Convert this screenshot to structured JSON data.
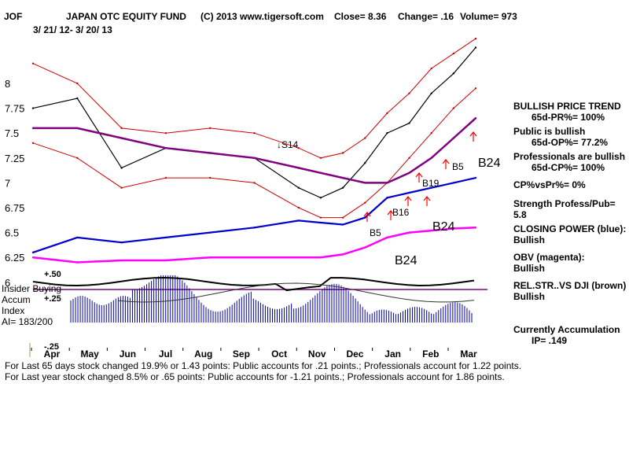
{
  "header": {
    "ticker": "JOF",
    "fund_name": "JAPAN OTC EQUITY FUND",
    "copyright": "(C) 2013 www.tigersoft.com",
    "close": "Close=  8.36",
    "change": "Change= .16",
    "volume": "Volume= 973",
    "date_range": "3/ 21/ 12-  3/ 20/ 13"
  },
  "chart_data": {
    "type": "line",
    "y_axis": {
      "ticks": [
        "8",
        "7.75",
        "7.5",
        "7.25",
        "7",
        "6.75",
        "6.5",
        "6.25",
        "6"
      ],
      "tick_values": [
        8,
        7.75,
        7.5,
        7.25,
        7,
        6.75,
        6.5,
        6.25,
        6
      ]
    },
    "x_axis": {
      "ticks": [
        "Apr",
        "May",
        "Jun",
        "Jul",
        "Aug",
        "Sep",
        "Oct",
        "Nov",
        "Dec",
        "Jan",
        "Feb",
        "Mar"
      ]
    },
    "x": [
      0,
      0.1,
      0.2,
      0.3,
      0.4,
      0.5,
      0.6,
      0.65,
      0.7,
      0.75,
      0.8,
      0.85,
      0.9,
      0.95,
      1.0
    ],
    "series": [
      {
        "name": "price",
        "color": "#000000",
        "values": [
          7.75,
          7.85,
          7.15,
          7.35,
          7.3,
          7.25,
          6.95,
          6.85,
          6.95,
          7.2,
          7.5,
          7.6,
          7.9,
          8.1,
          8.36
        ]
      },
      {
        "name": "upper band",
        "color": "#cc0000",
        "values": [
          8.2,
          8.0,
          7.55,
          7.5,
          7.55,
          7.5,
          7.35,
          7.25,
          7.3,
          7.45,
          7.7,
          7.9,
          8.15,
          8.3,
          8.45
        ]
      },
      {
        "name": "lower band",
        "color": "#cc0000",
        "values": [
          7.4,
          7.25,
          6.95,
          7.05,
          7.05,
          7.0,
          6.75,
          6.65,
          6.65,
          6.8,
          7.0,
          7.25,
          7.5,
          7.75,
          7.95
        ]
      },
      {
        "name": "65-day moving average",
        "color": "#800080",
        "values": [
          7.55,
          7.55,
          7.45,
          7.35,
          7.3,
          7.25,
          7.15,
          7.1,
          7.05,
          7.0,
          7.0,
          7.1,
          7.25,
          7.45,
          7.65
        ]
      },
      {
        "name": "closing power",
        "color": "#0000cc",
        "values": [
          6.3,
          6.45,
          6.4,
          6.45,
          6.5,
          6.55,
          6.62,
          6.6,
          6.58,
          6.65,
          6.85,
          6.9,
          6.95,
          7.0,
          7.05
        ]
      },
      {
        "name": "OBV",
        "color": "#ff00ff",
        "values": [
          6.25,
          6.2,
          6.22,
          6.22,
          6.25,
          6.25,
          6.25,
          6.25,
          6.28,
          6.35,
          6.45,
          6.5,
          6.52,
          6.54,
          6.55
        ]
      }
    ],
    "annotations": [
      {
        "label": "↓S14"
      },
      {
        "label": "B5"
      },
      {
        "label": "B19"
      },
      {
        "label": "B5"
      },
      {
        "label": "B16"
      },
      {
        "label": "B24"
      },
      {
        "label": "B24"
      },
      {
        "label": "B24"
      }
    ],
    "indicator": {
      "name": "Insider Buying Accum Index",
      "ticks": [
        "+.50",
        "+.25",
        "-.25"
      ],
      "ai_label": "AI= 183/200"
    }
  },
  "panel": {
    "trend_title": "BULLISH PRICE TREND",
    "pr": "65d-PR%= 100%",
    "public_label": "Public is bullish",
    "op": "65d-OP%= 77.2%",
    "pros_label": "Professionals are bullish",
    "cp": "65d-CP%= 100%",
    "cpvspr": "CP%vsPr%=  0%",
    "strength": "Strength Profess/Pub= 5.8",
    "closing_power_title": "CLOSING POWER (blue):",
    "closing_power_value": "Bullish",
    "obv_title": "OBV (magenta):",
    "obv_value": "Bullish",
    "relstr_title": "REL.STR..VS DJI (brown)",
    "relstr_value": "Bullish",
    "accum_title": "Currently Accumulation",
    "ip": "IP=  .149"
  },
  "indicator_labels": {
    "line1": "Insider Buying",
    "line2": "Accum",
    "line3": "Index",
    "line4": "AI= 183/200"
  },
  "footer": {
    "line1": "For Last 65 days stock changed  19.9% or  1.43 points:  Public accounts for  .21 points.;  Professionals account for  1.22 points.",
    "line2": "For Last year stock changed  8.5% or  .65 points:  Public accounts for -1.21 points.;  Professionals account for  1.86 points."
  }
}
